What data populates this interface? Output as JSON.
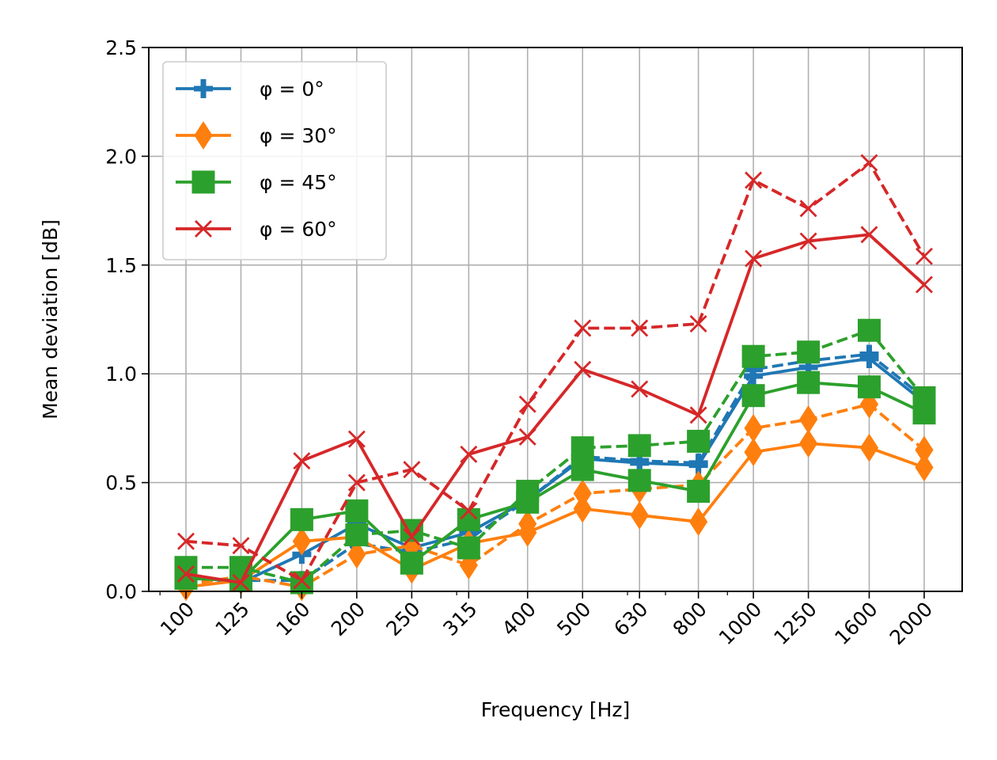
{
  "chart_data": {
    "type": "line",
    "xlabel": "Frequency [Hz]",
    "ylabel": "Mean deviation [dB]",
    "categories": [
      "100",
      "125",
      "160",
      "200",
      "250",
      "315",
      "400",
      "500",
      "630",
      "800",
      "1000",
      "1250",
      "1600",
      "2000"
    ],
    "x_scale": "log",
    "ylim": [
      0,
      2.5
    ],
    "yticks": [
      "0.0",
      "0.5",
      "1.0",
      "1.5",
      "2.0",
      "2.5"
    ],
    "grid": true,
    "legend_position": "top-left",
    "series": [
      {
        "name": "φ = 0°",
        "color": "#1f77b4",
        "marker": "plus",
        "linestyle": "solid",
        "values": [
          0.07,
          0.04,
          0.17,
          0.31,
          0.2,
          0.27,
          0.42,
          0.61,
          0.59,
          0.58,
          0.99,
          1.03,
          1.07,
          0.87
        ]
      },
      {
        "name": "",
        "color": "#1f77b4",
        "marker": "plus",
        "linestyle": "dashed",
        "values": [
          0.05,
          0.05,
          0.05,
          0.22,
          0.18,
          0.24,
          0.42,
          0.62,
          0.6,
          0.59,
          1.02,
          1.06,
          1.09,
          0.89
        ]
      },
      {
        "name": "φ = 30°",
        "color": "#ff7f0e",
        "marker": "diamond",
        "linestyle": "solid",
        "values": [
          0.02,
          0.05,
          0.23,
          0.25,
          0.1,
          0.22,
          0.27,
          0.38,
          0.35,
          0.32,
          0.64,
          0.68,
          0.66,
          0.57
        ]
      },
      {
        "name": "",
        "color": "#ff7f0e",
        "marker": "diamond",
        "linestyle": "dashed",
        "values": [
          0.03,
          0.07,
          0.02,
          0.17,
          0.21,
          0.12,
          0.31,
          0.45,
          0.47,
          0.49,
          0.75,
          0.79,
          0.86,
          0.65
        ]
      },
      {
        "name": "φ = 45°",
        "color": "#2ca02c",
        "marker": "square",
        "linestyle": "solid",
        "values": [
          0.06,
          0.05,
          0.33,
          0.37,
          0.13,
          0.33,
          0.41,
          0.56,
          0.51,
          0.46,
          0.9,
          0.96,
          0.94,
          0.82
        ]
      },
      {
        "name": "",
        "color": "#2ca02c",
        "marker": "square",
        "linestyle": "dashed",
        "values": [
          0.11,
          0.11,
          0.04,
          0.26,
          0.28,
          0.2,
          0.46,
          0.66,
          0.67,
          0.69,
          1.08,
          1.1,
          1.2,
          0.89
        ]
      },
      {
        "name": "φ = 60°",
        "color": "#d62728",
        "marker": "x",
        "linestyle": "solid",
        "values": [
          0.08,
          0.04,
          0.6,
          0.7,
          0.25,
          0.63,
          0.71,
          1.02,
          0.93,
          0.81,
          1.53,
          1.61,
          1.64,
          1.41
        ]
      },
      {
        "name": "",
        "color": "#d62728",
        "marker": "x",
        "linestyle": "dashed",
        "values": [
          0.23,
          0.21,
          0.05,
          0.5,
          0.56,
          0.37,
          0.86,
          1.21,
          1.21,
          1.23,
          1.89,
          1.76,
          1.97,
          1.54
        ]
      }
    ]
  }
}
